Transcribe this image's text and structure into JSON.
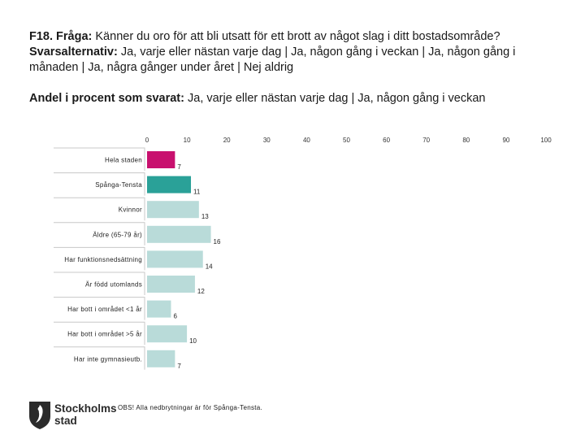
{
  "header": {
    "question_label": "F18. Fråga:",
    "question_text": "Känner du oro för att bli utsatt för ett brott av något slag i ditt bostadsområde?",
    "answers_label": "Svarsalternativ:",
    "answers_text": "Ja, varje eller nästan varje dag | Ja, någon gång i veckan | Ja, någon gång i månaden | Ja, några gånger under året | Nej aldrig",
    "measure_label": "Andel i procent som svarat:",
    "measure_text": "Ja, varje eller nästan varje dag | Ja, någon gång i veckan"
  },
  "chart_data": {
    "type": "bar",
    "orientation": "horizontal",
    "title": "Andel i procent som svarat: Ja, varje eller nästan varje dag | Ja, någon gång i veckan",
    "xlim": [
      0,
      100
    ],
    "xticks": [
      0,
      10,
      20,
      30,
      40,
      50,
      60,
      70,
      80,
      90,
      100
    ],
    "categories": [
      "Hela staden",
      "Spånga-Tensta",
      "Kvinnor",
      "Äldre (65-79 år)",
      "Har funktionsnedsättning",
      "Är född utomlands",
      "Har bott i området <1 år",
      "Har bott i området >5 år",
      "Har inte gymnasieutb."
    ],
    "values": [
      7,
      11,
      13,
      16,
      14,
      12,
      6,
      10,
      7
    ],
    "colors": [
      "#c8106e",
      "#2aa198",
      "#b9dbd9",
      "#b9dbd9",
      "#b9dbd9",
      "#b9dbd9",
      "#b9dbd9",
      "#b9dbd9",
      "#b9dbd9"
    ],
    "grid": false
  },
  "footer": {
    "logo_text_line1": "Stockholms",
    "logo_text_line2": "stad",
    "note": "OBS! Alla nedbrytningar är för Spånga-Tensta."
  }
}
